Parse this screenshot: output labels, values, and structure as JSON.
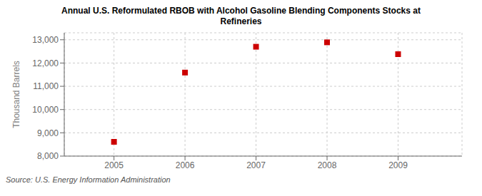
{
  "chart_data": {
    "type": "scatter",
    "title": "Annual U.S. Reformulated RBOB with Alcohol Gasoline Blending Components Stocks at\nRefineries",
    "y_label": "Thousand Barrels",
    "annotations": [
      "Source: U.S. Energy Information Administration"
    ],
    "x": [
      2005,
      2006,
      2007,
      2008,
      2009
    ],
    "values": [
      8613,
      11590,
      12700,
      12890,
      12380
    ],
    "color": "#cc0000",
    "marker": "square",
    "xlim": [
      2004.3,
      2009.9
    ],
    "xticks": [
      2005,
      2006,
      2007,
      2008,
      2009
    ],
    "ylim": [
      8000,
      13300
    ],
    "yticks": [
      {
        "value": 8000,
        "label": "8,000"
      },
      {
        "value": 9000,
        "label": "9,000"
      },
      {
        "value": 10000,
        "label": "10,000"
      },
      {
        "value": 11000,
        "label": "11,000"
      },
      {
        "value": 12000,
        "label": "12,000"
      },
      {
        "value": 13000,
        "label": "13,000"
      }
    ],
    "grid": true
  }
}
